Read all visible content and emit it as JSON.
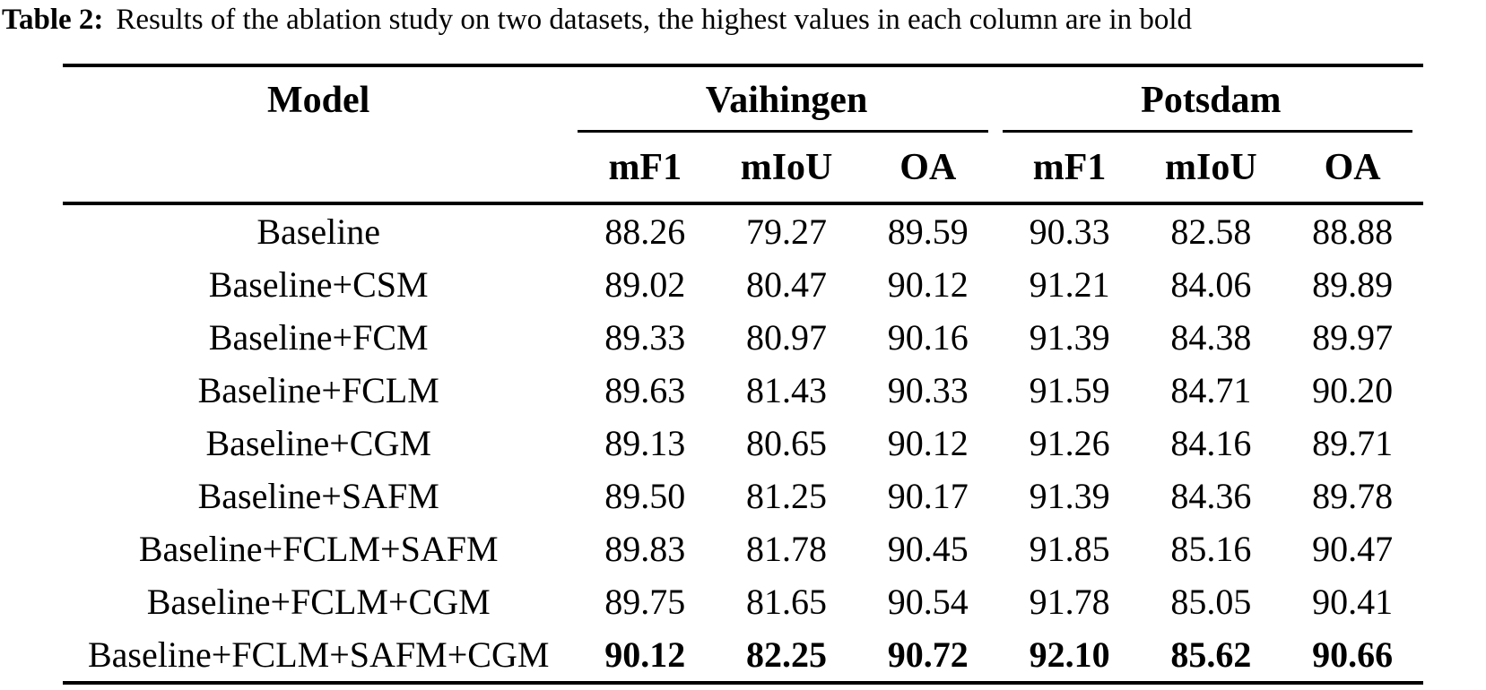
{
  "caption": {
    "label": "Table 2:",
    "text": "Results of the ablation study on two datasets, the highest values in each column are in bold"
  },
  "colors": {
    "text": "#000000",
    "background": "#ffffff",
    "rules": "#000000"
  },
  "table": {
    "model_header": "Model",
    "groups": [
      {
        "label": "Vaihingen",
        "metrics": [
          "mF1",
          "mIoU",
          "OA"
        ]
      },
      {
        "label": "Potsdam",
        "metrics": [
          "mF1",
          "mIoU",
          "OA"
        ]
      }
    ],
    "rows": [
      {
        "model": "Baseline",
        "values": [
          "88.26",
          "79.27",
          "89.59",
          "90.33",
          "82.58",
          "88.88"
        ],
        "bold_values": false
      },
      {
        "model": "Baseline+CSM",
        "values": [
          "89.02",
          "80.47",
          "90.12",
          "91.21",
          "84.06",
          "89.89"
        ],
        "bold_values": false
      },
      {
        "model": "Baseline+FCM",
        "values": [
          "89.33",
          "80.97",
          "90.16",
          "91.39",
          "84.38",
          "89.97"
        ],
        "bold_values": false
      },
      {
        "model": "Baseline+FCLM",
        "values": [
          "89.63",
          "81.43",
          "90.33",
          "91.59",
          "84.71",
          "90.20"
        ],
        "bold_values": false
      },
      {
        "model": "Baseline+CGM",
        "values": [
          "89.13",
          "80.65",
          "90.12",
          "91.26",
          "84.16",
          "89.71"
        ],
        "bold_values": false
      },
      {
        "model": "Baseline+SAFM",
        "values": [
          "89.50",
          "81.25",
          "90.17",
          "91.39",
          "84.36",
          "89.78"
        ],
        "bold_values": false
      },
      {
        "model": "Baseline+FCLM+SAFM",
        "values": [
          "89.83",
          "81.78",
          "90.45",
          "91.85",
          "85.16",
          "90.47"
        ],
        "bold_values": false
      },
      {
        "model": "Baseline+FCLM+CGM",
        "values": [
          "89.75",
          "81.65",
          "90.54",
          "91.78",
          "85.05",
          "90.41"
        ],
        "bold_values": false
      },
      {
        "model": "Baseline+FCLM+SAFM+CGM",
        "values": [
          "90.12",
          "82.25",
          "90.72",
          "92.10",
          "85.62",
          "90.66"
        ],
        "bold_values": true
      }
    ]
  }
}
